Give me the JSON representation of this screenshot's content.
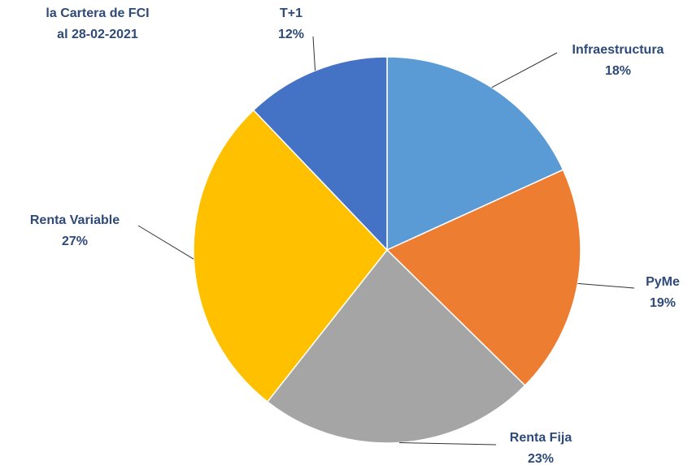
{
  "chart_data": {
    "type": "pie",
    "title": "la Cartera de FCI",
    "subtitle": "al 28-02-2021",
    "categories": [
      "Infraestructura",
      "PyMe",
      "Renta Fija",
      "Renta Variable",
      "T+1"
    ],
    "values": [
      18,
      19,
      23,
      27,
      12
    ],
    "value_labels": [
      "18%",
      "19%",
      "23%",
      "27%",
      "12%"
    ],
    "colors": [
      "#5b9bd5",
      "#ed7d31",
      "#a5a5a5",
      "#ffc000",
      "#4472c4"
    ]
  }
}
